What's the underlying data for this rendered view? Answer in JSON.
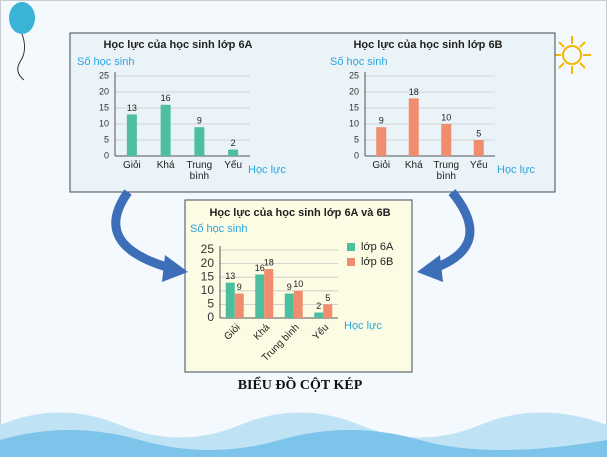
{
  "chart_data": [
    {
      "type": "bar",
      "title": "Học lực của học sinh lớp 6A",
      "y_label": "Số học sinh",
      "x_label": "Học lực",
      "categories": [
        "Giỏi",
        "Khá",
        "Trung bình",
        "Yếu"
      ],
      "values": [
        13,
        16,
        9,
        2
      ],
      "color": "#4dbf9f",
      "ylim": [
        0,
        25
      ],
      "yticks": [
        0,
        5,
        10,
        15,
        20,
        25
      ],
      "grid": true
    },
    {
      "type": "bar",
      "title": "Học lực của học sinh lớp 6B",
      "y_label": "Số học sinh",
      "x_label": "Học lực",
      "categories": [
        "Giỏi",
        "Khá",
        "Trung bình",
        "Yếu"
      ],
      "values": [
        9,
        18,
        10,
        5
      ],
      "color": "#f28c6e",
      "ylim": [
        0,
        25
      ],
      "yticks": [
        0,
        5,
        10,
        15,
        20,
        25
      ],
      "grid": true
    },
    {
      "type": "bar",
      "title": "Học lực của học sinh lớp 6A và 6B",
      "y_label": "Số học sinh",
      "x_label": "Học lực",
      "categories": [
        "Giỏi",
        "Khá",
        "Trung bình",
        "Yếu"
      ],
      "series": [
        {
          "name": "lớp 6A",
          "color": "#4dbf9f",
          "values": [
            13,
            16,
            9,
            2
          ]
        },
        {
          "name": "lớp 6B",
          "color": "#f28c6e",
          "values": [
            9,
            18,
            10,
            5
          ]
        }
      ],
      "ylim": [
        0,
        25
      ],
      "yticks": [
        0,
        5,
        10,
        15,
        20,
        25
      ],
      "grid": true,
      "legend": "top-right"
    }
  ],
  "caption": "BIỂU ĐỒ CỘT KÉP"
}
